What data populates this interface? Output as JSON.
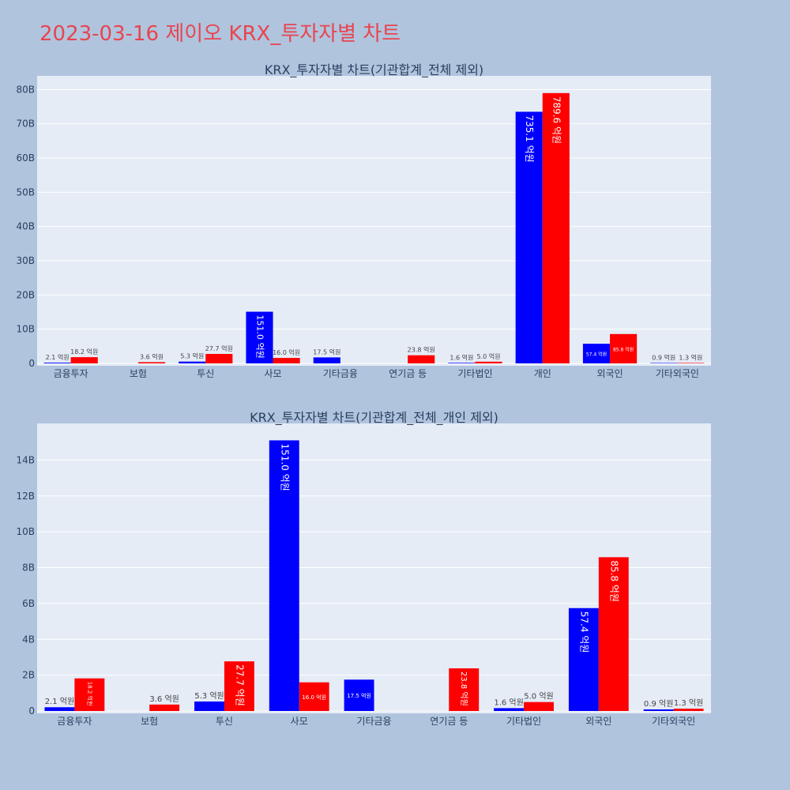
{
  "title": "2023-03-16 제이오 KRX_투자자별 차트",
  "colors": {
    "background": "#b0c4de",
    "plot_bg": "#e5ecf6",
    "title": "#e8454f",
    "buy": "#0000ff",
    "sell": "#ff0000"
  },
  "chart_data": [
    {
      "type": "bar",
      "title": "KRX_투자자별 차트(기관합계_전체 제외)",
      "categories": [
        "금융투자",
        "보험",
        "투신",
        "사모",
        "기타금융",
        "연기금 등",
        "기타법인",
        "개인",
        "외국인",
        "기타외국인"
      ],
      "ylim": [
        0,
        84
      ],
      "yticks": [
        0,
        10,
        20,
        30,
        40,
        50,
        60,
        70,
        80
      ],
      "yticklabels": [
        "0",
        "10B",
        "20B",
        "30B",
        "40B",
        "50B",
        "60B",
        "70B",
        "80B"
      ],
      "grid": true,
      "series": [
        {
          "color": "#0000ff",
          "values": [
            0.21,
            null,
            0.53,
            15.1,
            1.75,
            null,
            0.16,
            73.51,
            5.74,
            0.09
          ],
          "labels": [
            "2.1 억원",
            "",
            "5.3 억원",
            "151.0 억원",
            "17.5 억원",
            "",
            "1.6 억원",
            "735.1 억원",
            "57.4 억원",
            "0.9 억원"
          ]
        },
        {
          "color": "#ff0000",
          "values": [
            1.82,
            0.36,
            2.77,
            1.6,
            null,
            2.38,
            0.5,
            78.96,
            8.58,
            0.13
          ],
          "labels": [
            "18.2 억원",
            "3.6 억원",
            "27.7 억원",
            "16.0 억원",
            "",
            "23.8 억원",
            "5.0 억원",
            "789.6 억원",
            "85.8 억원",
            "1.3 억원"
          ]
        }
      ]
    },
    {
      "type": "bar",
      "title": "KRX_투자자별 차트(기관합계_전체_개인 제외)",
      "categories": [
        "금융투자",
        "보험",
        "투신",
        "사모",
        "기타금융",
        "연기금 등",
        "기타법인",
        "외국인",
        "기타외국인"
      ],
      "ylim": [
        0,
        16
      ],
      "yticks": [
        0,
        2,
        4,
        6,
        8,
        10,
        12,
        14
      ],
      "yticklabels": [
        "0",
        "2B",
        "4B",
        "6B",
        "8B",
        "10B",
        "12B",
        "14B"
      ],
      "grid": true,
      "series": [
        {
          "color": "#0000ff",
          "values": [
            0.21,
            null,
            0.53,
            15.1,
            1.75,
            null,
            0.16,
            5.74,
            0.09
          ],
          "labels": [
            "2.1 억원",
            "",
            "5.3 억원",
            "151.0 억원",
            "17.5 억원",
            "",
            "1.6 억원",
            "57.4 억원",
            "0.9 억원"
          ]
        },
        {
          "color": "#ff0000",
          "values": [
            1.82,
            0.36,
            2.77,
            1.6,
            null,
            2.38,
            0.5,
            8.58,
            0.13
          ],
          "labels": [
            "18.2 억원",
            "3.6 억원",
            "27.7 억원",
            "16.0 억원",
            "",
            "23.8 억원",
            "5.0 억원",
            "85.8 억원",
            "1.3 억원"
          ]
        }
      ]
    }
  ]
}
